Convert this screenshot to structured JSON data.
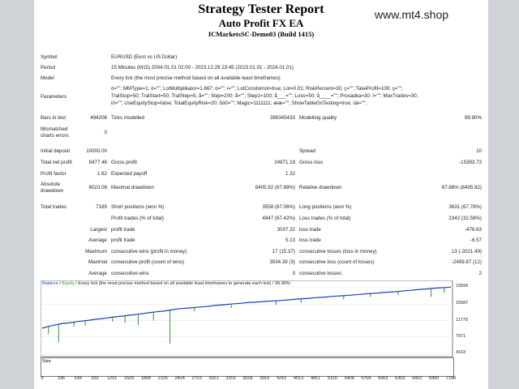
{
  "header": {
    "title": "Strategy Tester Report",
    "subtitle": "Auto Profit FX EA",
    "server": "ICMarketsSC-Demo03 (Build 1415)",
    "watermark": "www.mt4.shop"
  },
  "info": {
    "symbol_label": "Symbol",
    "symbol_value": "EURUSD (Euro vs US Dollar)",
    "period_label": "Period",
    "period_value": "15 Minutes (M15) 2004.01.01 02:00 - 2023.12.29 23:45 (2023.01.01 - 2024.01.01)",
    "model_label": "Model",
    "model_value": "Every tick (the most precise method based on all available least timeframes)",
    "params_label": "Parameters",
    "params_line1": "ó=\"\"; MMType=1; ó=\"\"; LotMultiplikator=1.667; ó=\"\"; i=\"\"; LotConstornot=true; Lot=0.01; RiskPercent=30; ç=\"\"; TakeProfit=100; ç=\"\";",
    "params_line2": "TralStop=50; TralStart=50; TralStep=5; å=\"\"; Step=200; å=\"\"; Step1=100; å___=\"\"; Loss=50; å____=\"\"; Prosadka=30; î=\"\"; MaxTrades=30;",
    "params_line3": "iö=\"\"; UseEquityStop=false; TotalEquityRisk=20; õöõ=\"\"; Magic=1111111; ææ=\"\"; ShowTableOnTesting=true; üä=\"\";"
  },
  "bars": {
    "bars_label": "Bars in test",
    "bars_value": "494208",
    "ticks_label": "Ticks modelled",
    "ticks_value": "389345433",
    "quality_label": "Modelling quality",
    "quality_value": "99.90%",
    "mis_label1": "Mismatched",
    "mis_label2": "charts errors",
    "mis_value": "0"
  },
  "stats": {
    "deposit_label": "Initial deposit",
    "deposit_value": "10000.00",
    "spread_label": "Spread",
    "spread_value": "10",
    "net_label": "Total net profit",
    "net_value": "9477.46",
    "gp_label": "Gross profit",
    "gp_value": "24871.19",
    "gl_label": "Gross loss",
    "gl_value": "-15393.73",
    "pf_label": "Profit factor",
    "pf_value": "1.62",
    "ep_label": "Expected payoff",
    "ep_value": "1.32",
    "ad_label1": "Absolute",
    "ad_label2": "drawdown",
    "ad_value": "6023.08",
    "md_label": "Maximal drawdown",
    "md_value": "8405.92 (67.88%)",
    "rd_label": "Relative drawdown",
    "rd_value": "67.88% (8405.92)"
  },
  "trades": {
    "total_label": "Total trades",
    "total_value": "7189",
    "short_label": "Short positions (won %)",
    "short_value": "3558 (67.06%)",
    "long_label": "Long positions (won %)",
    "long_value": "3631 (67.78%)",
    "pt_label": "Profit trades (% of total)",
    "pt_value": "4847 (67.42%)",
    "lt_label": "Loss trades (% of total)",
    "lt_value": "2342 (32.58%)",
    "largest": "Largest",
    "lp_label": "profit trade",
    "lp_value": "3037.32",
    "ll_label": "loss trade",
    "ll_value": "-476.63",
    "average": "Average",
    "ap_label": "profit trade",
    "ap_value": "5.13",
    "al_label": "loss trade",
    "al_value": "-6.57",
    "maximum": "Maximum",
    "mcw_label": "consecutive wins (profit in money)",
    "mcw_value": "17 (15.37)",
    "mcl_label": "consecutive losses (loss in money)",
    "mcl_value": "13 (-2021.49)",
    "maximal": "Maximal",
    "mcp_label": "consecutive profit (count of wins)",
    "mcp_value": "3934.39 (3)",
    "mcloss_label": "consecutive loss (count of losses)",
    "mcloss_value": "-2499.87 (12)",
    "average2": "Average",
    "acw_label": "consecutive wins",
    "acw_value": "3",
    "acl_label": "consecutive losses",
    "acl_value": "2"
  },
  "chart": {
    "legend_balance": "Balance",
    "legend_sep": " / ",
    "legend_equity": "Equity",
    "legend_rest": " / Every tick (the most precise method based on all available least timeframes to generate each tick) / 99.90%",
    "size_label": "Size",
    "balance_color": "#1a3fb0",
    "equity_color": "#2a9a2a"
  },
  "chart_data": {
    "type": "line",
    "title": "",
    "xlabel": "",
    "ylabel": "",
    "x_ticks": [
      "0",
      "336",
      "634",
      "932",
      "1231",
      "1529",
      "1828",
      "2126",
      "2424",
      "2723",
      "3021",
      "3319",
      "3618",
      "3916",
      "4215",
      "4513",
      "4811",
      "5110",
      "5408",
      "5706",
      "6003",
      "6303",
      "6602",
      "6900",
      "7198"
    ],
    "y_ticks": [
      "19595",
      "15587",
      "11779",
      "7971",
      "4163"
    ],
    "ylim": [
      4163,
      19595
    ],
    "xlim": [
      0,
      7198
    ],
    "series": [
      {
        "name": "Balance",
        "x": [
          0,
          100,
          250,
          336,
          500,
          634,
          800,
          932,
          1100,
          1231,
          1400,
          1529,
          1700,
          1828,
          2000,
          2126,
          2300,
          2424,
          2600,
          2723,
          2900,
          3021,
          3200,
          3319,
          3500,
          3618,
          3800,
          3916,
          4100,
          4215,
          4400,
          4513,
          4700,
          4811,
          5000,
          5110,
          5300,
          5408,
          5600,
          5706,
          5900,
          6003,
          6200,
          6303,
          6500,
          6602,
          6800,
          6900,
          7100,
          7198
        ],
        "y": [
          10000,
          10400,
          10800,
          11050,
          11300,
          11550,
          11800,
          12050,
          12300,
          12550,
          12800,
          13000,
          13250,
          13500,
          13800,
          13950,
          14300,
          14550,
          14700,
          14850,
          15050,
          15250,
          15450,
          15600,
          15800,
          15950,
          16100,
          16200,
          16350,
          16450,
          16650,
          16800,
          16950,
          17100,
          17250,
          17400,
          17550,
          17650,
          17850,
          18000,
          18150,
          18300,
          18450,
          18600,
          18800,
          18950,
          19150,
          19300,
          19450,
          19550
        ]
      },
      {
        "name": "Equity",
        "x": [
          110,
          290,
          560,
          760,
          1240,
          1460,
          1690,
          1960,
          2250,
          2680,
          3330,
          4120,
          4560,
          5310,
          5780,
          6270,
          6850,
          7080
        ],
        "y": [
          8700,
          6700,
          10400,
          10600,
          11500,
          11200,
          10700,
          11800,
          6400,
          13950,
          14700,
          15400,
          15900,
          16700,
          17300,
          17700,
          17300,
          18200
        ]
      }
    ]
  }
}
